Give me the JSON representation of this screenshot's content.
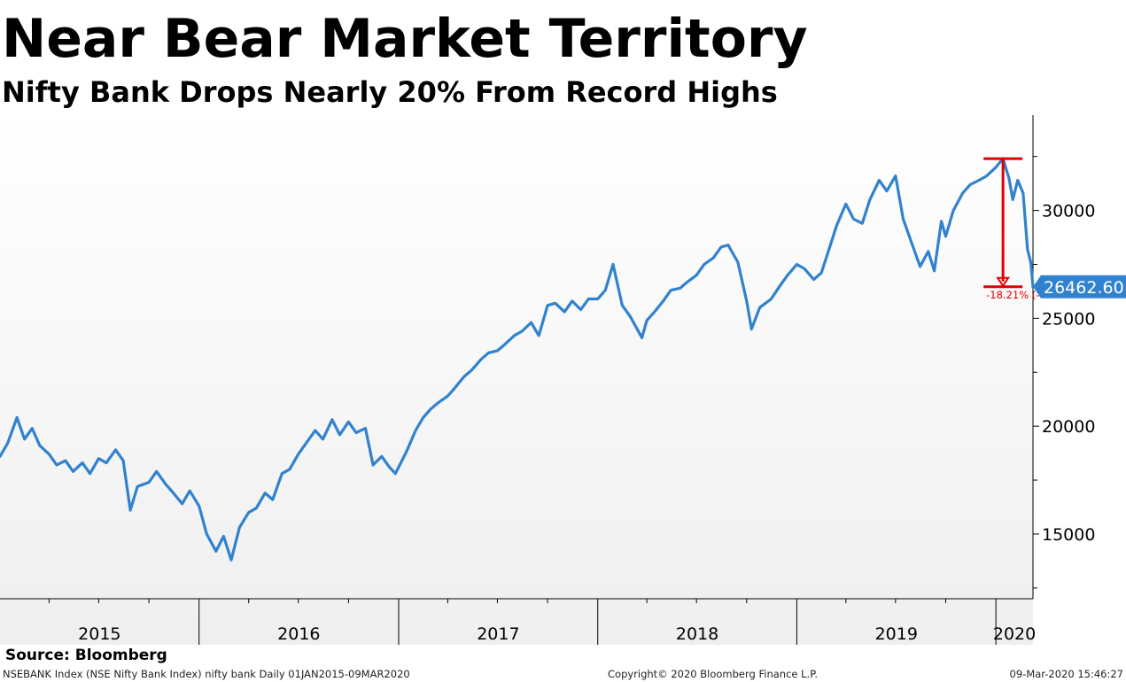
{
  "header": {
    "title": "Near Bear Market Territory",
    "subtitle": "Nifty Bank Drops Nearly 20% From Record Highs"
  },
  "source": "Source: Bloomberg",
  "footer": {
    "ticker_info": "NSEBANK Index (NSE Nifty Bank Index) nifty bank  Daily 01JAN2015-09MAR2020",
    "copyright": "Copyright© 2020 Bloomberg Finance L.P.",
    "timestamp": "09-Mar-2020 15:46:27"
  },
  "colors": {
    "line": "#3182ce",
    "annotation": "#e00000",
    "last_value_tag": "#3182ce",
    "background_top": "#ffffff",
    "background_bottom": "#efefef"
  },
  "chart_data": {
    "type": "line",
    "title": "Near Bear Market Territory",
    "subtitle": "Nifty Bank Drops Nearly 20% From Record Highs",
    "xlabel": "",
    "ylabel": "",
    "x_range": [
      "2015-01-01",
      "2020-03-09"
    ],
    "ylim": [
      12000,
      34500
    ],
    "y_axis_side": "right",
    "grid": false,
    "y_ticks": [
      15000,
      20000,
      25000,
      30000
    ],
    "y_tick_labels": [
      "15000",
      "20000",
      "25000",
      "30000"
    ],
    "x_tick_labels": [
      "2015",
      "2016",
      "2017",
      "2018",
      "2019",
      "2020"
    ],
    "last_value": 26462.6,
    "last_value_label": "26462.60",
    "annotation": {
      "label": "-18.21% (-",
      "from_date": "2020-01-14",
      "from_value": 32400,
      "to_value": 26462.6
    },
    "series": [
      {
        "x": [
          "2015-01-01",
          "2015-01-15",
          "2015-02-01",
          "2015-02-15",
          "2015-03-01",
          "2015-03-15",
          "2015-04-01",
          "2015-04-15",
          "2015-05-01",
          "2015-05-15",
          "2015-06-01",
          "2015-06-15",
          "2015-07-01",
          "2015-07-15",
          "2015-08-01",
          "2015-08-15",
          "2015-08-28",
          "2015-09-10",
          "2015-10-01",
          "2015-10-15",
          "2015-11-01",
          "2015-11-15",
          "2015-12-01",
          "2015-12-15",
          "2016-01-01",
          "2016-01-15",
          "2016-02-01",
          "2016-02-15",
          "2016-02-29",
          "2016-03-15",
          "2016-04-01",
          "2016-04-15",
          "2016-05-01",
          "2016-05-15",
          "2016-06-01",
          "2016-06-15",
          "2016-07-01",
          "2016-07-15",
          "2016-08-01",
          "2016-08-15",
          "2016-09-01",
          "2016-09-15",
          "2016-10-01",
          "2016-10-15",
          "2016-11-01",
          "2016-11-15",
          "2016-12-01",
          "2016-12-15",
          "2016-12-26",
          "2017-01-15",
          "2017-02-01",
          "2017-02-15",
          "2017-03-01",
          "2017-03-15",
          "2017-04-01",
          "2017-04-15",
          "2017-05-01",
          "2017-05-15",
          "2017-06-01",
          "2017-06-15",
          "2017-07-01",
          "2017-07-15",
          "2017-08-01",
          "2017-08-15",
          "2017-09-01",
          "2017-09-15",
          "2017-10-01",
          "2017-10-15",
          "2017-11-01",
          "2017-11-15",
          "2017-12-01",
          "2017-12-15",
          "2018-01-01",
          "2018-01-15",
          "2018-01-29",
          "2018-02-15",
          "2018-03-01",
          "2018-03-23",
          "2018-04-01",
          "2018-04-15",
          "2018-05-01",
          "2018-05-15",
          "2018-06-01",
          "2018-06-15",
          "2018-07-01",
          "2018-07-15",
          "2018-08-01",
          "2018-08-15",
          "2018-08-28",
          "2018-09-15",
          "2018-10-01",
          "2018-10-10",
          "2018-10-25",
          "2018-11-15",
          "2018-12-01",
          "2018-12-15",
          "2019-01-01",
          "2019-01-15",
          "2019-02-01",
          "2019-02-15",
          "2019-03-01",
          "2019-03-15",
          "2019-04-01",
          "2019-04-15",
          "2019-05-01",
          "2019-05-15",
          "2019-06-01",
          "2019-06-15",
          "2019-07-01",
          "2019-07-15",
          "2019-08-01",
          "2019-08-15",
          "2019-08-30",
          "2019-09-10",
          "2019-09-23",
          "2019-10-01",
          "2019-10-15",
          "2019-11-01",
          "2019-11-15",
          "2019-12-01",
          "2019-12-15",
          "2020-01-01",
          "2020-01-14",
          "2020-01-25",
          "2020-02-01",
          "2020-02-10",
          "2020-02-20",
          "2020-02-28",
          "2020-03-05",
          "2020-03-09"
        ],
        "y": [
          18600,
          19200,
          20400,
          19400,
          19900,
          19100,
          18700,
          18200,
          18400,
          17900,
          18300,
          17800,
          18500,
          18300,
          18900,
          18400,
          16100,
          17200,
          17400,
          17900,
          17300,
          16900,
          16400,
          17000,
          16300,
          15000,
          14200,
          14900,
          13800,
          15300,
          16000,
          16200,
          16900,
          16600,
          17800,
          18000,
          18700,
          19200,
          19800,
          19400,
          20300,
          19600,
          20200,
          19700,
          19900,
          18200,
          18600,
          18100,
          17800,
          18800,
          19800,
          20400,
          20800,
          21100,
          21400,
          21800,
          22300,
          22600,
          23100,
          23400,
          23500,
          23800,
          24200,
          24400,
          24800,
          24200,
          25600,
          25700,
          25300,
          25800,
          25400,
          25900,
          25900,
          26300,
          27500,
          25600,
          25100,
          24100,
          24900,
          25300,
          25800,
          26300,
          26400,
          26700,
          27000,
          27500,
          27800,
          28300,
          28400,
          27600,
          25800,
          24500,
          25500,
          25900,
          26500,
          27000,
          27500,
          27300,
          26800,
          27100,
          28200,
          29300,
          30300,
          29600,
          29400,
          30500,
          31400,
          30900,
          31600,
          29600,
          28400,
          27400,
          28100,
          27200,
          29500,
          28800,
          30000,
          30800,
          31200,
          31400,
          31600,
          32000,
          32400,
          31500,
          30500,
          31400,
          30800,
          28200,
          27600,
          26462.6
        ]
      }
    ]
  }
}
